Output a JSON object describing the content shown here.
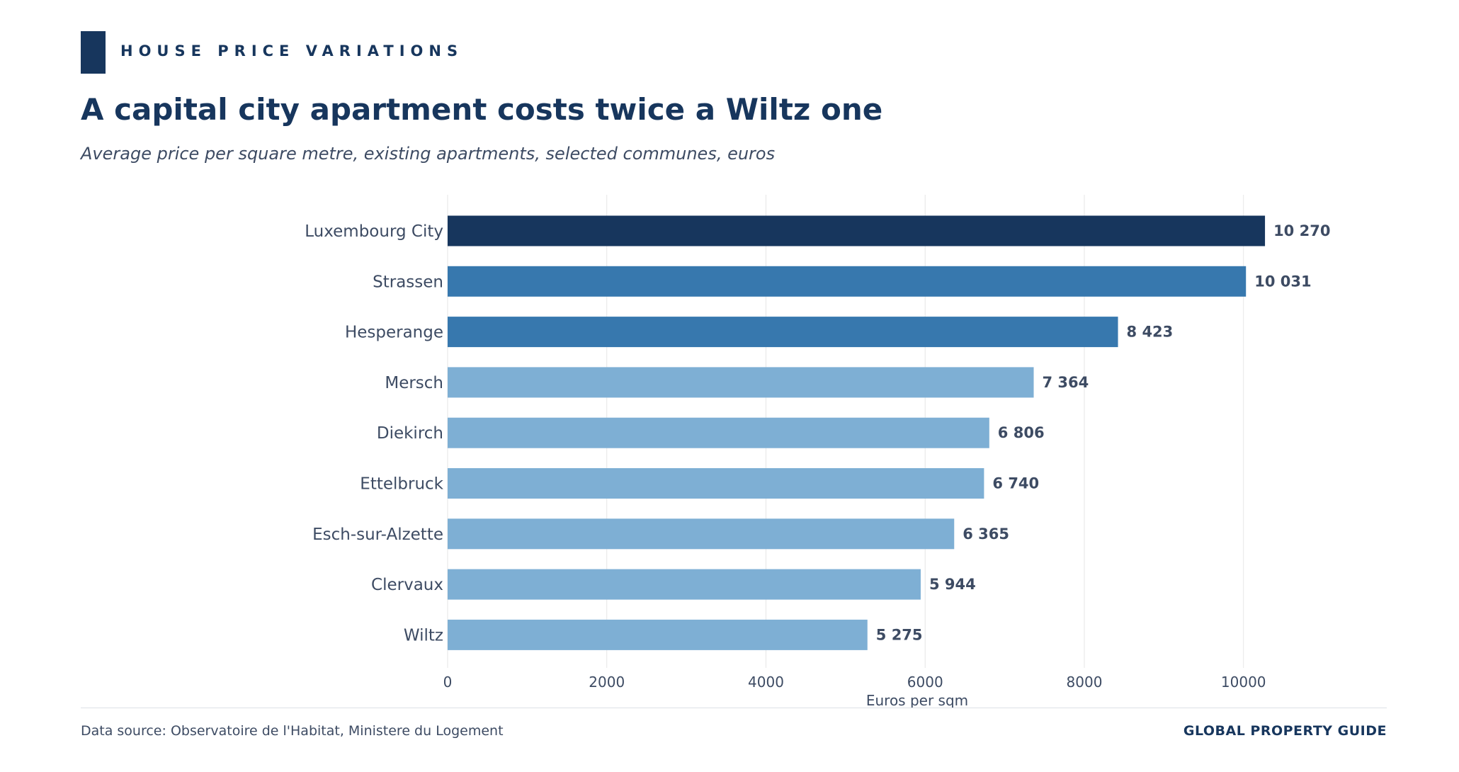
{
  "header": {
    "eyebrow": "HOUSE PRICE VARIATIONS",
    "title": "A capital city apartment costs twice a Wiltz one",
    "subtitle": "Average price per square metre, existing apartments, selected communes, euros"
  },
  "footer": {
    "source": "Data source: Observatoire de l'Habitat, Ministere du Logement",
    "brand": "GLOBAL PROPERTY GUIDE"
  },
  "colors": {
    "dark": "#17365d",
    "medium": "#3778ae",
    "light": "#7eafd4",
    "text": "#3d4b63",
    "grid": "#e6e6e6"
  },
  "chart_data": {
    "type": "bar",
    "orientation": "horizontal",
    "categories": [
      "Luxembourg City",
      "Strassen",
      "Hesperange",
      "Mersch",
      "Diekirch",
      "Ettelbruck",
      "Esch-sur-Alzette",
      "Clervaux",
      "Wiltz"
    ],
    "values": [
      10270,
      10031,
      8423,
      7364,
      6806,
      6740,
      6365,
      5944,
      5275
    ],
    "value_labels": [
      "10 270",
      "10 031",
      "8 423",
      "7 364",
      "6 806",
      "6 740",
      "6 365",
      "5 944",
      "5 275"
    ],
    "bar_colors": [
      "dark",
      "medium",
      "medium",
      "light",
      "light",
      "light",
      "light",
      "light",
      "light"
    ],
    "xlabel": "Euros per sqm",
    "ylabel": "",
    "xlim": [
      0,
      11800
    ],
    "xticks": [
      0,
      2000,
      4000,
      6000,
      8000,
      10000
    ],
    "grid": "vertical"
  }
}
